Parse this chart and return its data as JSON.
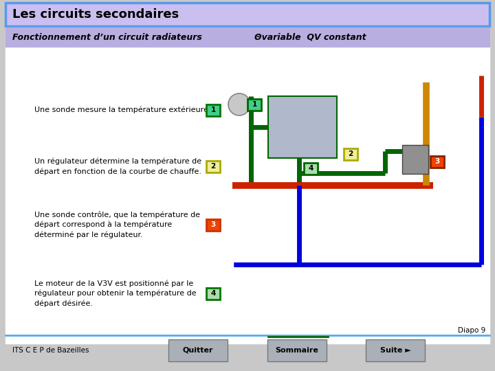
{
  "title": "Les circuits secondaires",
  "title_bg": "#cbbfef",
  "title_border": "#5599ee",
  "subtitle_left": "Fonctionnement d’un circuit radiateurs",
  "subtitle_right": "Θvariable  QV constant",
  "subtitle_bg": "#b8aee0",
  "bg_color": "#c8c8c8",
  "content_bg": "#ffffff",
  "text_color": "#000000",
  "items": [
    {
      "text": "Une sonde mesure la température extérieure.",
      "label": "1",
      "lborder": "#007700",
      "lbg": "#44cc88"
    },
    {
      "text": "Un régulateur détermine la température de\ndépart en fonction de la courbe de chauffe.",
      "label": "2",
      "lborder": "#aaaa00",
      "lbg": "#eeee99"
    },
    {
      "text": "Une sonde contrôle, que la température de\ndépart correspond à la température\ndéterminé par le régulateur.",
      "label": "3",
      "lborder": "#cc3300",
      "lbg": "#ee4400"
    },
    {
      "text": "Le moteur de la V3V est positionné par le\nrégulateur pour obtenir la température de\ndépart désirée.",
      "label": "4",
      "lborder": "#007700",
      "lbg": "#aaddaa"
    }
  ],
  "footer_left": "ITS C E P de Bazeilles",
  "footer_buttons": [
    "Quitter",
    "Sommaire",
    "Suite ►"
  ],
  "diapo": "Diapo 9",
  "button_bg": "#aab0b8",
  "line_color": "#55aaee"
}
